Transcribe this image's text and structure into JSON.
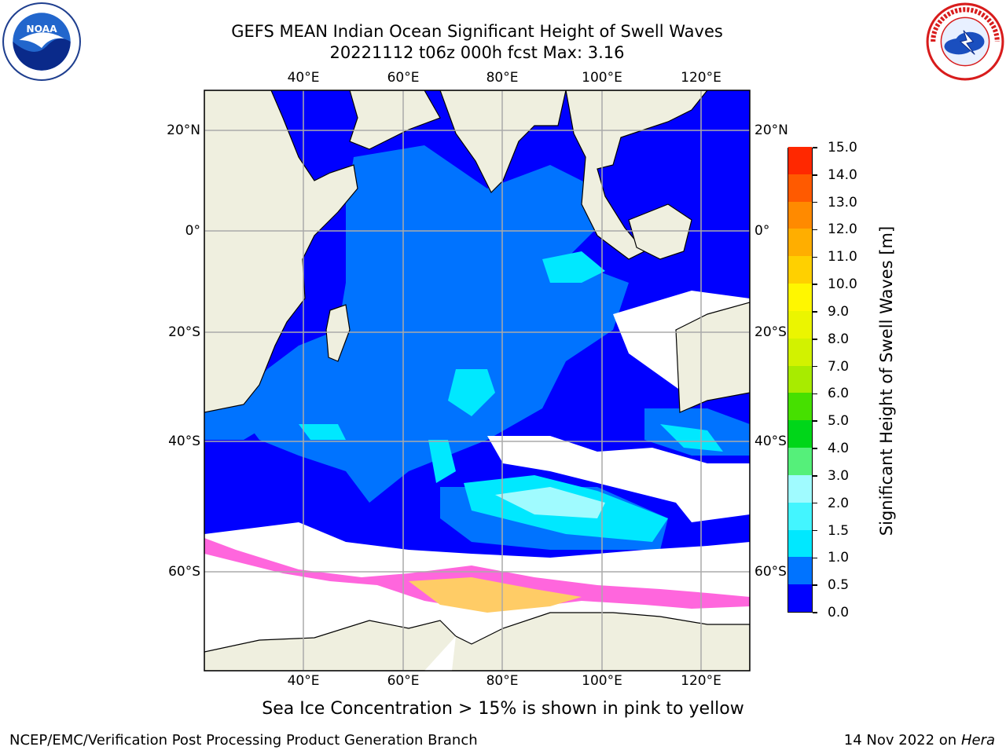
{
  "title_line1": "GEFS MEAN Indian Ocean Significant Height of Swell Waves",
  "title_line2": "20221112 t06z 000h fcst   Max: 3.16",
  "lon_labels": [
    "40°E",
    "60°E",
    "80°E",
    "100°E",
    "120°E"
  ],
  "lat_labels": [
    "20°N",
    "0°",
    "20°S",
    "40°S",
    "60°S"
  ],
  "colorbar": {
    "label": "Significant Height of Swell Waves [m]",
    "ticks": [
      "0.0",
      "0.5",
      "1.0",
      "1.5",
      "2.0",
      "3.0",
      "4.0",
      "5.0",
      "6.0",
      "7.0",
      "8.0",
      "9.0",
      "10.0",
      "11.0",
      "12.0",
      "13.0",
      "14.0",
      "15.0"
    ],
    "colors": [
      "#0000ff",
      "#0073ff",
      "#00e8ff",
      "#43f5ff",
      "#a0fbff",
      "#55f07a",
      "#00d619",
      "#46e000",
      "#a8eb00",
      "#d2f200",
      "#ebf500",
      "#fff700",
      "#ffd000",
      "#ffae00",
      "#ff8a00",
      "#ff5a00",
      "#ff2800"
    ]
  },
  "caption": "Sea Ice Concentration > 15% is shown in pink to yellow",
  "footer_left": "NCEP/EMC/Verification Post Processing Product Generation Branch",
  "footer_right_prefix": "14 Nov 2022 on",
  "footer_right_host": "Hera",
  "colors": {
    "land": "#efefdf",
    "ocean_deep": "#0000ff",
    "ocean_mid": "#0073ff",
    "ocean_light": "#00e8ff",
    "ice_pink": "#ff66dd",
    "ice_yellow": "#ffcc66"
  },
  "icons": [
    "noaa-logo",
    "nws-logo"
  ]
}
